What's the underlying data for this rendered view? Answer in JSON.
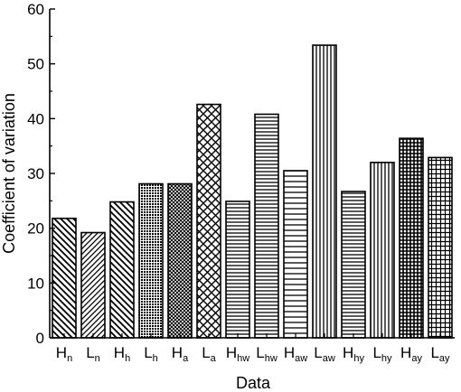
{
  "chart_data": {
    "type": "bar",
    "title": "",
    "xlabel": "Data",
    "ylabel": "Coefficient of variation",
    "ylim": [
      0,
      60
    ],
    "yticks": [
      0,
      10,
      20,
      30,
      40,
      50,
      60
    ],
    "grid": false,
    "legend": "none",
    "categories": [
      {
        "main": "H",
        "sub": "n"
      },
      {
        "main": "L",
        "sub": "n"
      },
      {
        "main": "H",
        "sub": "h"
      },
      {
        "main": "L",
        "sub": "h"
      },
      {
        "main": "H",
        "sub": "a"
      },
      {
        "main": "L",
        "sub": "a"
      },
      {
        "main": "H",
        "sub": "hw"
      },
      {
        "main": "L",
        "sub": "hw"
      },
      {
        "main": "H",
        "sub": "aw"
      },
      {
        "main": "L",
        "sub": "aw"
      },
      {
        "main": "H",
        "sub": "hy"
      },
      {
        "main": "L",
        "sub": "hy"
      },
      {
        "main": "H",
        "sub": "ay"
      },
      {
        "main": "L",
        "sub": "ay"
      }
    ],
    "values": [
      21.8,
      19.2,
      24.8,
      28.1,
      28.1,
      42.6,
      24.9,
      40.8,
      30.5,
      53.4,
      26.7,
      32.0,
      36.4,
      32.9
    ],
    "patterns": [
      "back-diagonal",
      "diagonal",
      "back-diagonal",
      "dense-dots",
      "dense-crosshatch",
      "crosshatch",
      "horizontal",
      "horizontal",
      "horizontal-sparse",
      "vertical",
      "horizontal",
      "vertical",
      "grid-dense",
      "grid"
    ],
    "colors": {
      "bar_stroke": "#000000",
      "fill": "#ffffff",
      "axis": "#000000"
    }
  }
}
